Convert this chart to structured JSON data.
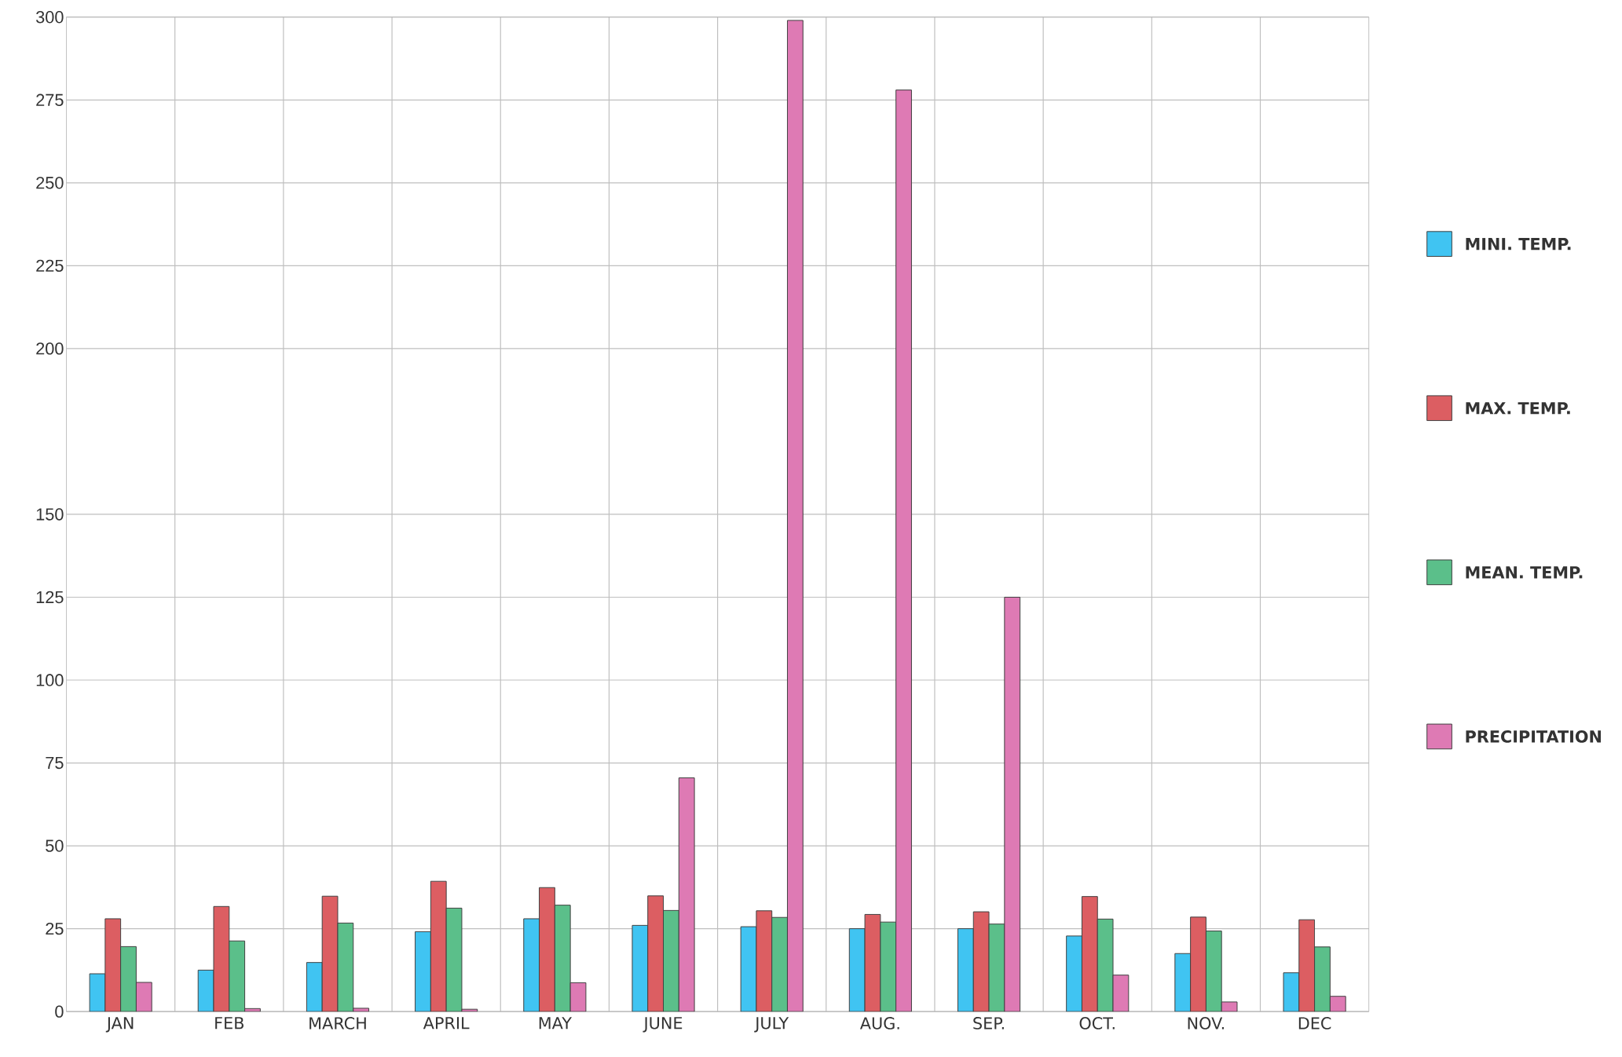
{
  "chart_data": {
    "type": "bar",
    "categories": [
      "JAN",
      "FEB",
      "MARCH",
      "APRIL",
      "MAY",
      "JUNE",
      "JULY",
      "AUG.",
      "SEP.",
      "OCT.",
      "NOV.",
      "DEC"
    ],
    "series": [
      {
        "name": "MINI. TEMP.",
        "color": "#40c4f2",
        "values": [
          11.4,
          12.5,
          14.8,
          24.1,
          28,
          26,
          25.6,
          25,
          25,
          22.8,
          17.5,
          11.7
        ]
      },
      {
        "name": "MAX. TEMP.",
        "color": "#dc5e62",
        "values": [
          28,
          31.7,
          34.8,
          39.3,
          37.4,
          34.9,
          30.4,
          29.3,
          30.1,
          34.7,
          28.5,
          27.7
        ]
      },
      {
        "name": "MEAN. TEMP.",
        "color": "#5bbf8a",
        "values": [
          19.6,
          21.3,
          26.7,
          31.2,
          32.1,
          30.5,
          28.4,
          27,
          26.4,
          27.9,
          24.3,
          19.5
        ]
      },
      {
        "name": "PRECIPITATION",
        "color": "#de7ab4",
        "values": [
          8.8,
          0.9,
          1,
          0.7,
          8.7,
          70.5,
          299,
          278,
          125,
          11,
          2.9,
          4.6
        ]
      }
    ],
    "ylim": [
      0,
      300
    ],
    "yticks": [
      0,
      25,
      50,
      75,
      100,
      125,
      150,
      200,
      225,
      250,
      275,
      300
    ],
    "grid": true,
    "legend": "right"
  }
}
